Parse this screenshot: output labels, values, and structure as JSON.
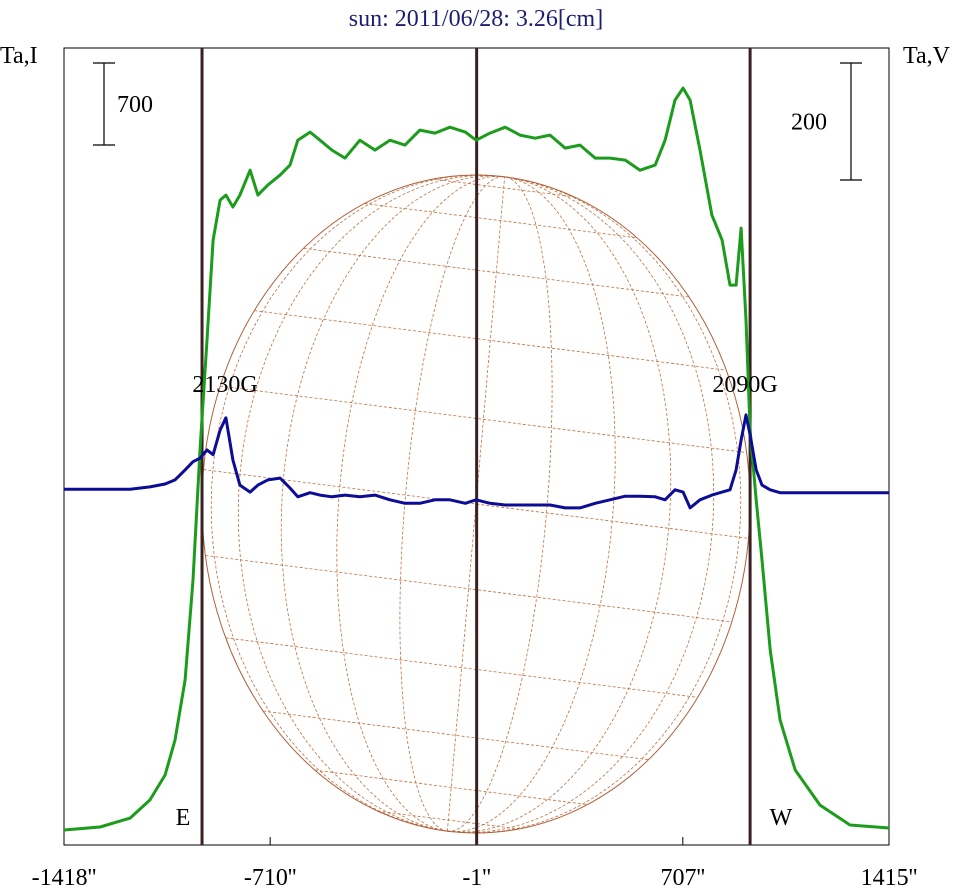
{
  "chart_data": {
    "type": "line",
    "title": "sun: 2011/06/28: 3.26[cm]",
    "y_label": "Ta,I",
    "y2_label": "Ta,V",
    "y_scale_bar": 700,
    "y2_scale_bar": 200,
    "annotations": [
      "2130G",
      "2090G",
      "E",
      "W"
    ],
    "vlines": [
      -944,
      -1,
      938
    ],
    "xlim": [
      -1418,
      1415
    ],
    "xticks": [
      {
        "value": -1418,
        "label": "-1418''"
      },
      {
        "value": -710,
        "label": "-710''"
      },
      {
        "value": -1,
        "label": "-1''"
      },
      {
        "value": 707,
        "label": "707''"
      },
      {
        "value": 1415,
        "label": "1415''"
      }
    ],
    "ylim": [
      0,
      6805
    ],
    "y2lim": [
      -605,
      757
    ],
    "x": [
      -1418,
      -1294,
      -1191,
      -1123,
      -1071,
      -1037,
      -1002,
      -975,
      -951,
      -927,
      -906,
      -882,
      -862,
      -838,
      -814,
      -779,
      -752,
      -718,
      -676,
      -642,
      -615,
      -573,
      -539,
      -498,
      -453,
      -402,
      -350,
      -299,
      -247,
      -196,
      -144,
      -93,
      -40,
      -3,
      45,
      97,
      148,
      200,
      251,
      303,
      354,
      406,
      457,
      509,
      560,
      612,
      646,
      680,
      708,
      732,
      766,
      807,
      842,
      869,
      890,
      907,
      924,
      938,
      959,
      979,
      1007,
      1041,
      1093,
      1178,
      1281,
      1415
    ],
    "series": [
      {
        "color": "#1c9c1c",
        "axis": "y",
        "values": [
          128,
          154,
          230,
          384,
          598,
          896,
          1409,
          2262,
          3372,
          4311,
          5165,
          5506,
          5549,
          5447,
          5549,
          5762,
          5549,
          5634,
          5720,
          5805,
          6018,
          6087,
          6018,
          5933,
          5865,
          6018,
          5933,
          6018,
          5976,
          6104,
          6078,
          6129,
          6087,
          6018,
          6078,
          6129,
          6061,
          6035,
          6061,
          5950,
          5976,
          5865,
          5865,
          5848,
          5762,
          5805,
          6018,
          6360,
          6463,
          6360,
          5933,
          5378,
          5165,
          4781,
          4781,
          5267,
          4482,
          3543,
          2945,
          2433,
          1665,
          1067,
          640,
          341,
          171,
          145
        ]
      },
      {
        "color": "#0c0c96",
        "axis": "y2",
        "values": [
          3,
          3,
          3,
          7,
          12,
          19,
          36,
          50,
          56,
          70,
          62,
          104,
          125,
          53,
          10,
          -2,
          10,
          19,
          22,
          5,
          -10,
          -3,
          -7,
          -10,
          -7,
          -10,
          -7,
          -15,
          -21,
          -21,
          -15,
          -15,
          -21,
          -15,
          -21,
          -24,
          -24,
          -24,
          -24,
          -29,
          -29,
          -21,
          -15,
          -9,
          -9,
          -10,
          -15,
          2,
          -2,
          -29,
          -15,
          -7,
          -2,
          2,
          36,
          87,
          130,
          96,
          36,
          10,
          2,
          -3,
          -3,
          -3,
          -3,
          -3
        ]
      }
    ]
  }
}
